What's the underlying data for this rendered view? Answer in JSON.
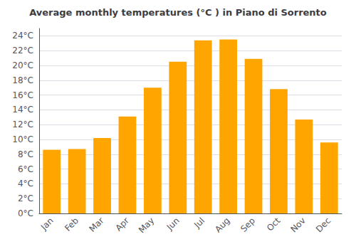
{
  "chart_data": {
    "type": "bar",
    "title": "Average monthly temperatures (°C ) in Piano di Sorrento",
    "categories": [
      "Jan",
      "Feb",
      "Mar",
      "Apr",
      "May",
      "Jun",
      "Jul",
      "Aug",
      "Sep",
      "Oct",
      "Nov",
      "Dec"
    ],
    "values": [
      8.6,
      8.7,
      10.2,
      13.1,
      17.0,
      20.5,
      23.4,
      23.5,
      20.9,
      16.8,
      12.7,
      9.6
    ],
    "color": "#FFA500",
    "ylim": [
      0,
      25
    ],
    "yticks": [
      {
        "value": 0,
        "label": "0°C"
      },
      {
        "value": 2,
        "label": "2°C"
      },
      {
        "value": 4,
        "label": "4°C"
      },
      {
        "value": 6,
        "label": "6°C"
      },
      {
        "value": 8,
        "label": "8°C"
      },
      {
        "value": 10,
        "label": "10°C"
      },
      {
        "value": 12,
        "label": "12°C"
      },
      {
        "value": 14,
        "label": "14°C"
      },
      {
        "value": 16,
        "label": "16°C"
      },
      {
        "value": 18,
        "label": "18°C"
      },
      {
        "value": 20,
        "label": "20°C"
      },
      {
        "value": 22,
        "label": "22°C"
      },
      {
        "value": 24,
        "label": "24°C"
      }
    ],
    "grid": true
  }
}
